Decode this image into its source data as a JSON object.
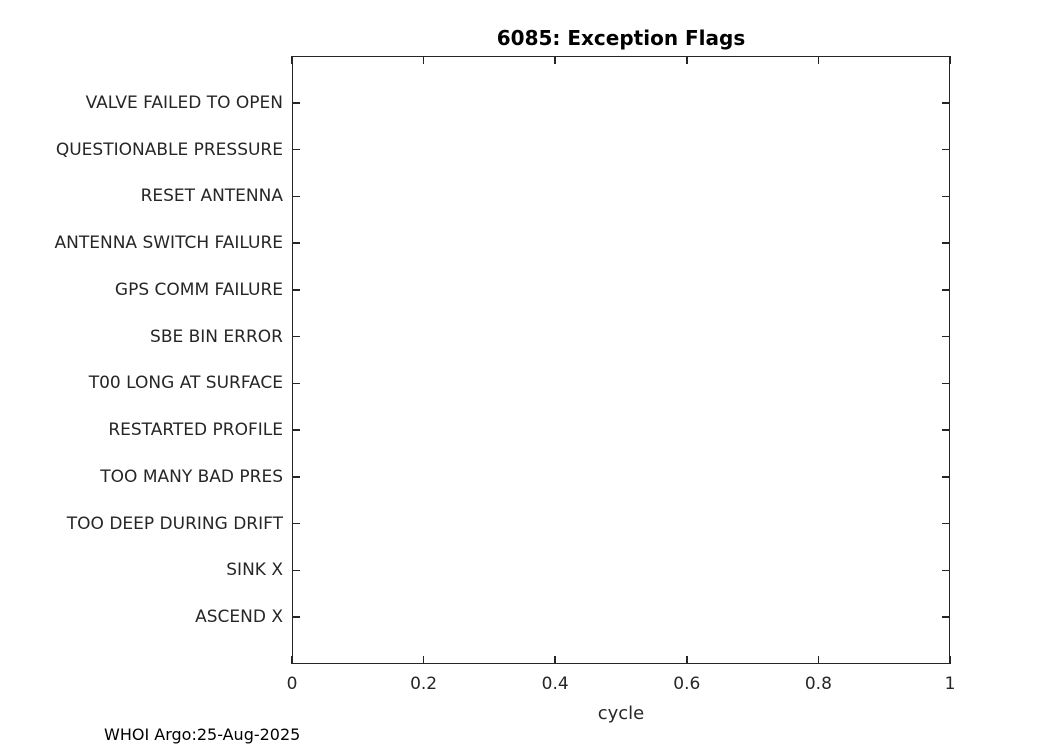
{
  "chart_data": {
    "type": "scatter",
    "title": "6085: Exception Flags",
    "xlabel": "cycle",
    "ylabel": "",
    "xlim": [
      0,
      1
    ],
    "x_ticks": [
      "0",
      "0.2",
      "0.4",
      "0.6",
      "0.8",
      "1"
    ],
    "y_categories": [
      "VALVE FAILED TO OPEN",
      "QUESTIONABLE PRESSURE",
      "RESET ANTENNA",
      "ANTENNA SWITCH FAILURE",
      "GPS COMM FAILURE",
      "SBE BIN ERROR",
      "T00 LONG AT SURFACE",
      "RESTARTED PROFILE",
      "TOO MANY BAD PRES",
      "TOO DEEP DURING DRIFT",
      "SINK X",
      "ASCEND X"
    ],
    "series": [],
    "grid": false,
    "legend": false,
    "box": true,
    "tick_direction": "in"
  },
  "footer": {
    "credit": "WHOI Argo:25-Aug-2025"
  },
  "colors": {
    "axis": "#262626",
    "title": "#000000",
    "background": "#ffffff"
  }
}
